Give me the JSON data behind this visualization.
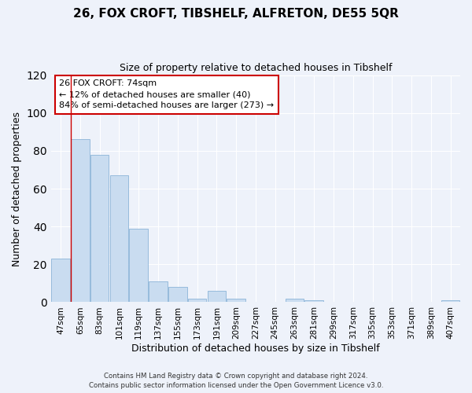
{
  "title": "26, FOX CROFT, TIBSHELF, ALFRETON, DE55 5QR",
  "subtitle": "Size of property relative to detached houses in Tibshelf",
  "xlabel": "Distribution of detached houses by size in Tibshelf",
  "ylabel": "Number of detached properties",
  "bar_values": [
    23,
    86,
    78,
    67,
    39,
    11,
    8,
    2,
    6,
    2,
    0,
    0,
    2,
    1,
    0,
    0,
    0,
    0,
    0,
    0,
    1
  ],
  "categories": [
    "47sqm",
    "65sqm",
    "83sqm",
    "101sqm",
    "119sqm",
    "137sqm",
    "155sqm",
    "173sqm",
    "191sqm",
    "209sqm",
    "227sqm",
    "245sqm",
    "263sqm",
    "281sqm",
    "299sqm",
    "317sqm",
    "335sqm",
    "353sqm",
    "371sqm",
    "389sqm",
    "407sqm"
  ],
  "bar_color": "#c9dcf0",
  "bar_edge_color": "#8cb4d8",
  "ylim": [
    0,
    120
  ],
  "yticks": [
    0,
    20,
    40,
    60,
    80,
    100,
    120
  ],
  "annotation_box_text": "26 FOX CROFT: 74sqm\n← 12% of detached houses are smaller (40)\n84% of semi-detached houses are larger (273) →",
  "red_line_x": 0.5,
  "footer_line1": "Contains HM Land Registry data © Crown copyright and database right 2024.",
  "footer_line2": "Contains public sector information licensed under the Open Government Licence v3.0.",
  "bg_color": "#eef2fa",
  "grid_color": "#ffffff",
  "annotation_box_color": "#ffffff",
  "annotation_box_edge_color": "#cc0000"
}
